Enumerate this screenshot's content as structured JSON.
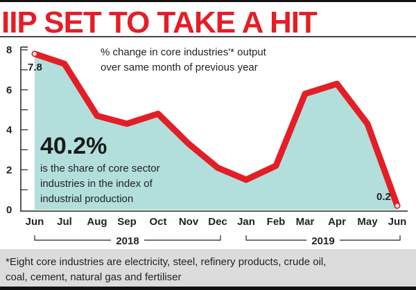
{
  "headline": "IIP SET TO TAKE A HIT",
  "chart_data": {
    "type": "area",
    "title": "",
    "subtitle_lines": [
      "% change in core industries'* output",
      "over same month of previous year"
    ],
    "categories": [
      "Jun",
      "Jul",
      "Aug",
      "Sep",
      "Oct",
      "Nov",
      "Dec",
      "Jan",
      "Feb",
      "Mar",
      "Apr",
      "May",
      "Jun"
    ],
    "year_groups": [
      {
        "label": "2018",
        "from": 0,
        "to": 6
      },
      {
        "label": "2019",
        "from": 7,
        "to": 12
      }
    ],
    "values": [
      7.8,
      7.3,
      4.7,
      4.3,
      4.8,
      3.3,
      2.1,
      1.5,
      2.2,
      5.8,
      6.3,
      4.3,
      0.2
    ],
    "data_labels": [
      {
        "index": 0,
        "text": "7.8"
      },
      {
        "index": 12,
        "text": "0.2"
      }
    ],
    "yticks": [
      0,
      2,
      4,
      6,
      8
    ],
    "ylim": [
      0,
      8
    ],
    "grid": false,
    "line_color": "#e41e26",
    "fill_color": "#b2dfdb"
  },
  "callout": {
    "value": "40.2%",
    "lines": [
      "is the share of core sector",
      "industries in the index of",
      "industrial production"
    ]
  },
  "footnote": {
    "lines": [
      "*Eight core industries are electricity, steel, refinery products, crude oil,",
      "coal, cement, natural gas and fertiliser"
    ]
  }
}
